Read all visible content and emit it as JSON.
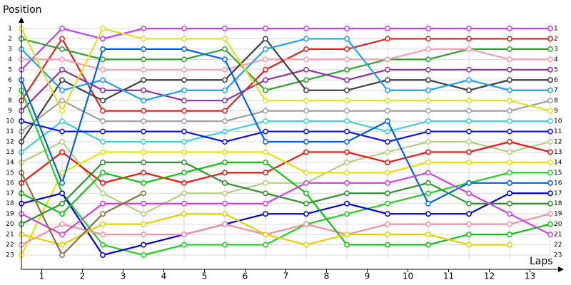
{
  "chart_data": {
    "type": "line",
    "title": "Position",
    "x_label": "Laps",
    "x": [
      0,
      1,
      2,
      3,
      4,
      5,
      6,
      7,
      8,
      9,
      10,
      11,
      12,
      13
    ],
    "xlim": [
      0,
      13
    ],
    "xticks": [
      {
        "value": 0.5,
        "label": "1"
      },
      {
        "value": 1.5,
        "label": "2"
      },
      {
        "value": 2.5,
        "label": "3"
      },
      {
        "value": 3.5,
        "label": "4"
      },
      {
        "value": 4.5,
        "label": "5"
      },
      {
        "value": 5.5,
        "label": "6"
      },
      {
        "value": 6.5,
        "label": "7"
      },
      {
        "value": 7.5,
        "label": "8"
      },
      {
        "value": 8.5,
        "label": "9"
      },
      {
        "value": 9.5,
        "label": "10"
      },
      {
        "value": 10.5,
        "label": "11"
      },
      {
        "value": 11.5,
        "label": "12"
      },
      {
        "value": 12.5,
        "label": "13"
      }
    ],
    "ylim": [
      1,
      23
    ],
    "y_inverted": true,
    "yticks": [
      1,
      2,
      3,
      4,
      5,
      6,
      7,
      8,
      9,
      10,
      11,
      12,
      13,
      14,
      15,
      16,
      17,
      18,
      19,
      20,
      21,
      22,
      23
    ],
    "grid": true,
    "series": [
      {
        "color": "#c040f0",
        "values": [
          5,
          1,
          2,
          1,
          1,
          1,
          1,
          1,
          1,
          1,
          1,
          1,
          1,
          1
        ]
      },
      {
        "color": "#e02020",
        "values": [
          8,
          2,
          9,
          9,
          9,
          9,
          5,
          3,
          3,
          2,
          2,
          2,
          2,
          2
        ]
      },
      {
        "color": "#30a030",
        "values": [
          2,
          3,
          4,
          4,
          4,
          3,
          7,
          6,
          5,
          4,
          4,
          3,
          3,
          3
        ]
      },
      {
        "color": "#f0a0b0",
        "values": [
          4,
          4,
          5,
          5,
          5,
          5,
          4,
          4,
          4,
          4,
          3,
          3,
          4,
          4
        ]
      },
      {
        "color": "#9030a0",
        "values": [
          9,
          5,
          7,
          7,
          8,
          8,
          6,
          5,
          6,
          5,
          5,
          5,
          5,
          5
        ]
      },
      {
        "color": "#404040",
        "values": [
          12,
          6,
          8,
          6,
          6,
          6,
          2,
          7,
          7,
          6,
          6,
          7,
          6,
          6
        ]
      },
      {
        "color": "#20a0f0",
        "values": [
          3,
          7,
          6,
          8,
          7,
          7,
          3,
          2,
          2,
          7,
          7,
          6,
          7,
          7
        ]
      },
      {
        "color": "#a0a0a0",
        "values": [
          11,
          8,
          10,
          10,
          10,
          10,
          9,
          9,
          9,
          9,
          9,
          9,
          9,
          8
        ]
      },
      {
        "color": "#e0e020",
        "values": [
          1,
          9,
          1,
          2,
          2,
          2,
          8,
          8,
          8,
          8,
          8,
          8,
          8,
          9
        ]
      },
      {
        "color": "#40d0d0",
        "values": [
          13,
          10,
          12,
          12,
          12,
          11,
          10,
          10,
          10,
          11,
          10,
          10,
          10,
          10
        ]
      },
      {
        "color": "#1010e0",
        "values": [
          10,
          11,
          11,
          11,
          11,
          12,
          11,
          11,
          11,
          12,
          11,
          11,
          11,
          11
        ]
      },
      {
        "color": "#b0d080",
        "values": [
          14,
          12,
          17,
          19,
          17,
          17,
          16,
          16,
          14,
          13,
          12,
          12,
          13,
          12
        ]
      },
      {
        "color": "#f01010",
        "values": [
          16,
          13,
          16,
          15,
          16,
          15,
          15,
          13,
          13,
          14,
          13,
          13,
          12,
          13
        ]
      },
      {
        "color": "#e8e000",
        "values": [
          23,
          15,
          13,
          13,
          13,
          13,
          13,
          15,
          15,
          15,
          14,
          14,
          14,
          14
        ]
      },
      {
        "color": "#20d020",
        "values": [
          7,
          17,
          22,
          23,
          22,
          22,
          22,
          20,
          19,
          18,
          17,
          16,
          15,
          15
        ]
      },
      {
        "color": "#0060f0",
        "values": [
          6,
          16,
          3,
          3,
          3,
          4,
          12,
          12,
          12,
          10,
          18,
          16,
          16,
          16
        ]
      },
      {
        "color": "#0000d0",
        "values": [
          18,
          17,
          23,
          22,
          21,
          20,
          19,
          19,
          18,
          19,
          19,
          19,
          17,
          17
        ]
      },
      {
        "color": "#309030",
        "values": [
          20,
          18,
          14,
          14,
          14,
          16,
          17,
          18,
          17,
          17,
          16,
          18,
          18,
          18
        ]
      },
      {
        "color": "#f090a0",
        "values": [
          22,
          20,
          21,
          21,
          21,
          20,
          21,
          20,
          21,
          20,
          20,
          20,
          20,
          19
        ]
      },
      {
        "color": "#10c010",
        "values": [
          17,
          19,
          15,
          16,
          15,
          14,
          14,
          17,
          22,
          22,
          22,
          21,
          21,
          20
        ]
      },
      {
        "color": "#d040e0",
        "values": [
          19,
          21,
          18,
          18,
          18,
          18,
          18,
          16,
          16,
          16,
          15,
          17,
          19,
          21
        ]
      },
      {
        "color": "#e0d000",
        "values": [
          21,
          22,
          20,
          20,
          19,
          19,
          21,
          22,
          21,
          21,
          21,
          22,
          22,
          null
        ]
      },
      {
        "color": "#8a7040",
        "values": [
          15,
          23,
          19,
          17,
          null,
          null,
          null,
          null,
          null,
          null,
          null,
          null,
          null,
          null
        ]
      }
    ]
  }
}
